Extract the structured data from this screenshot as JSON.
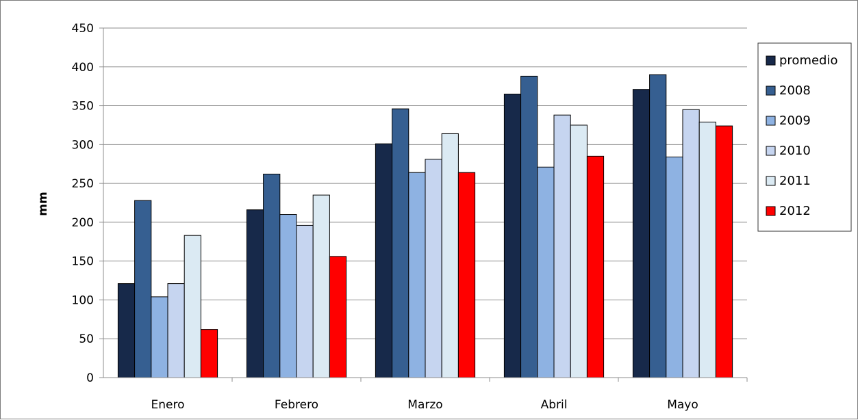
{
  "chart_data": {
    "type": "bar",
    "title": "",
    "xlabel": "",
    "ylabel": "mm",
    "ylim": [
      0,
      450
    ],
    "yticks": [
      0,
      50,
      100,
      150,
      200,
      250,
      300,
      350,
      400,
      450
    ],
    "grid": true,
    "legend_position": "right",
    "categories": [
      "Enero",
      "Febrero",
      "Marzo",
      "Abril",
      "Mayo"
    ],
    "series": [
      {
        "name": "promedio",
        "color": "#17294a",
        "values": [
          121,
          216,
          301,
          365,
          371
        ]
      },
      {
        "name": "2008",
        "color": "#365f91",
        "values": [
          228,
          262,
          346,
          388,
          390
        ]
      },
      {
        "name": "2009",
        "color": "#8eb2e2",
        "values": [
          104,
          210,
          264,
          271,
          284
        ]
      },
      {
        "name": "2010",
        "color": "#c6d5f0",
        "values": [
          121,
          196,
          281,
          338,
          345
        ]
      },
      {
        "name": "2011",
        "color": "#dbeaf3",
        "values": [
          183,
          235,
          314,
          325,
          329
        ]
      },
      {
        "name": "2012",
        "color": "#ff0000",
        "values": [
          62,
          156,
          264,
          285,
          324
        ]
      }
    ]
  }
}
